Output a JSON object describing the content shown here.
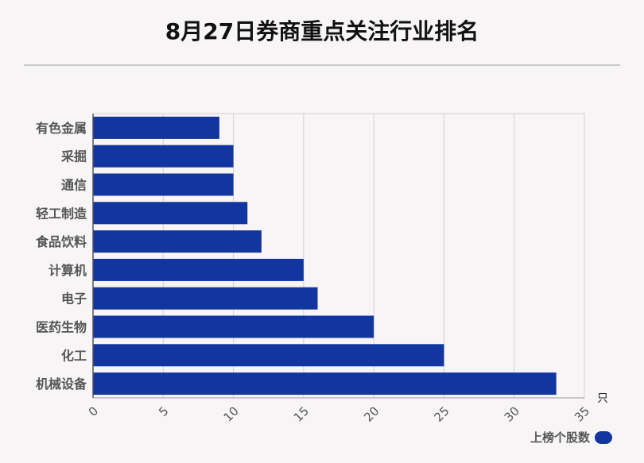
{
  "title": "8月27日券商重点关注行业排名",
  "chart_data": {
    "type": "bar",
    "orientation": "horizontal",
    "categories": [
      "有色金属",
      "采掘",
      "通信",
      "轻工制造",
      "食品饮料",
      "计算机",
      "电子",
      "医药生物",
      "化工",
      "机械设备"
    ],
    "series": [
      {
        "name": "上榜个股数",
        "values": [
          9,
          10,
          10,
          11,
          12,
          15,
          16,
          20,
          25,
          33
        ]
      }
    ],
    "xlim": [
      0,
      35
    ],
    "xticks": [
      0,
      5,
      10,
      15,
      20,
      25,
      30,
      35
    ],
    "xunit": "只",
    "grid": true,
    "legend_position": "bottom-right",
    "bar_color": "#1235a0"
  },
  "legend": {
    "label": "上榜个股数"
  }
}
